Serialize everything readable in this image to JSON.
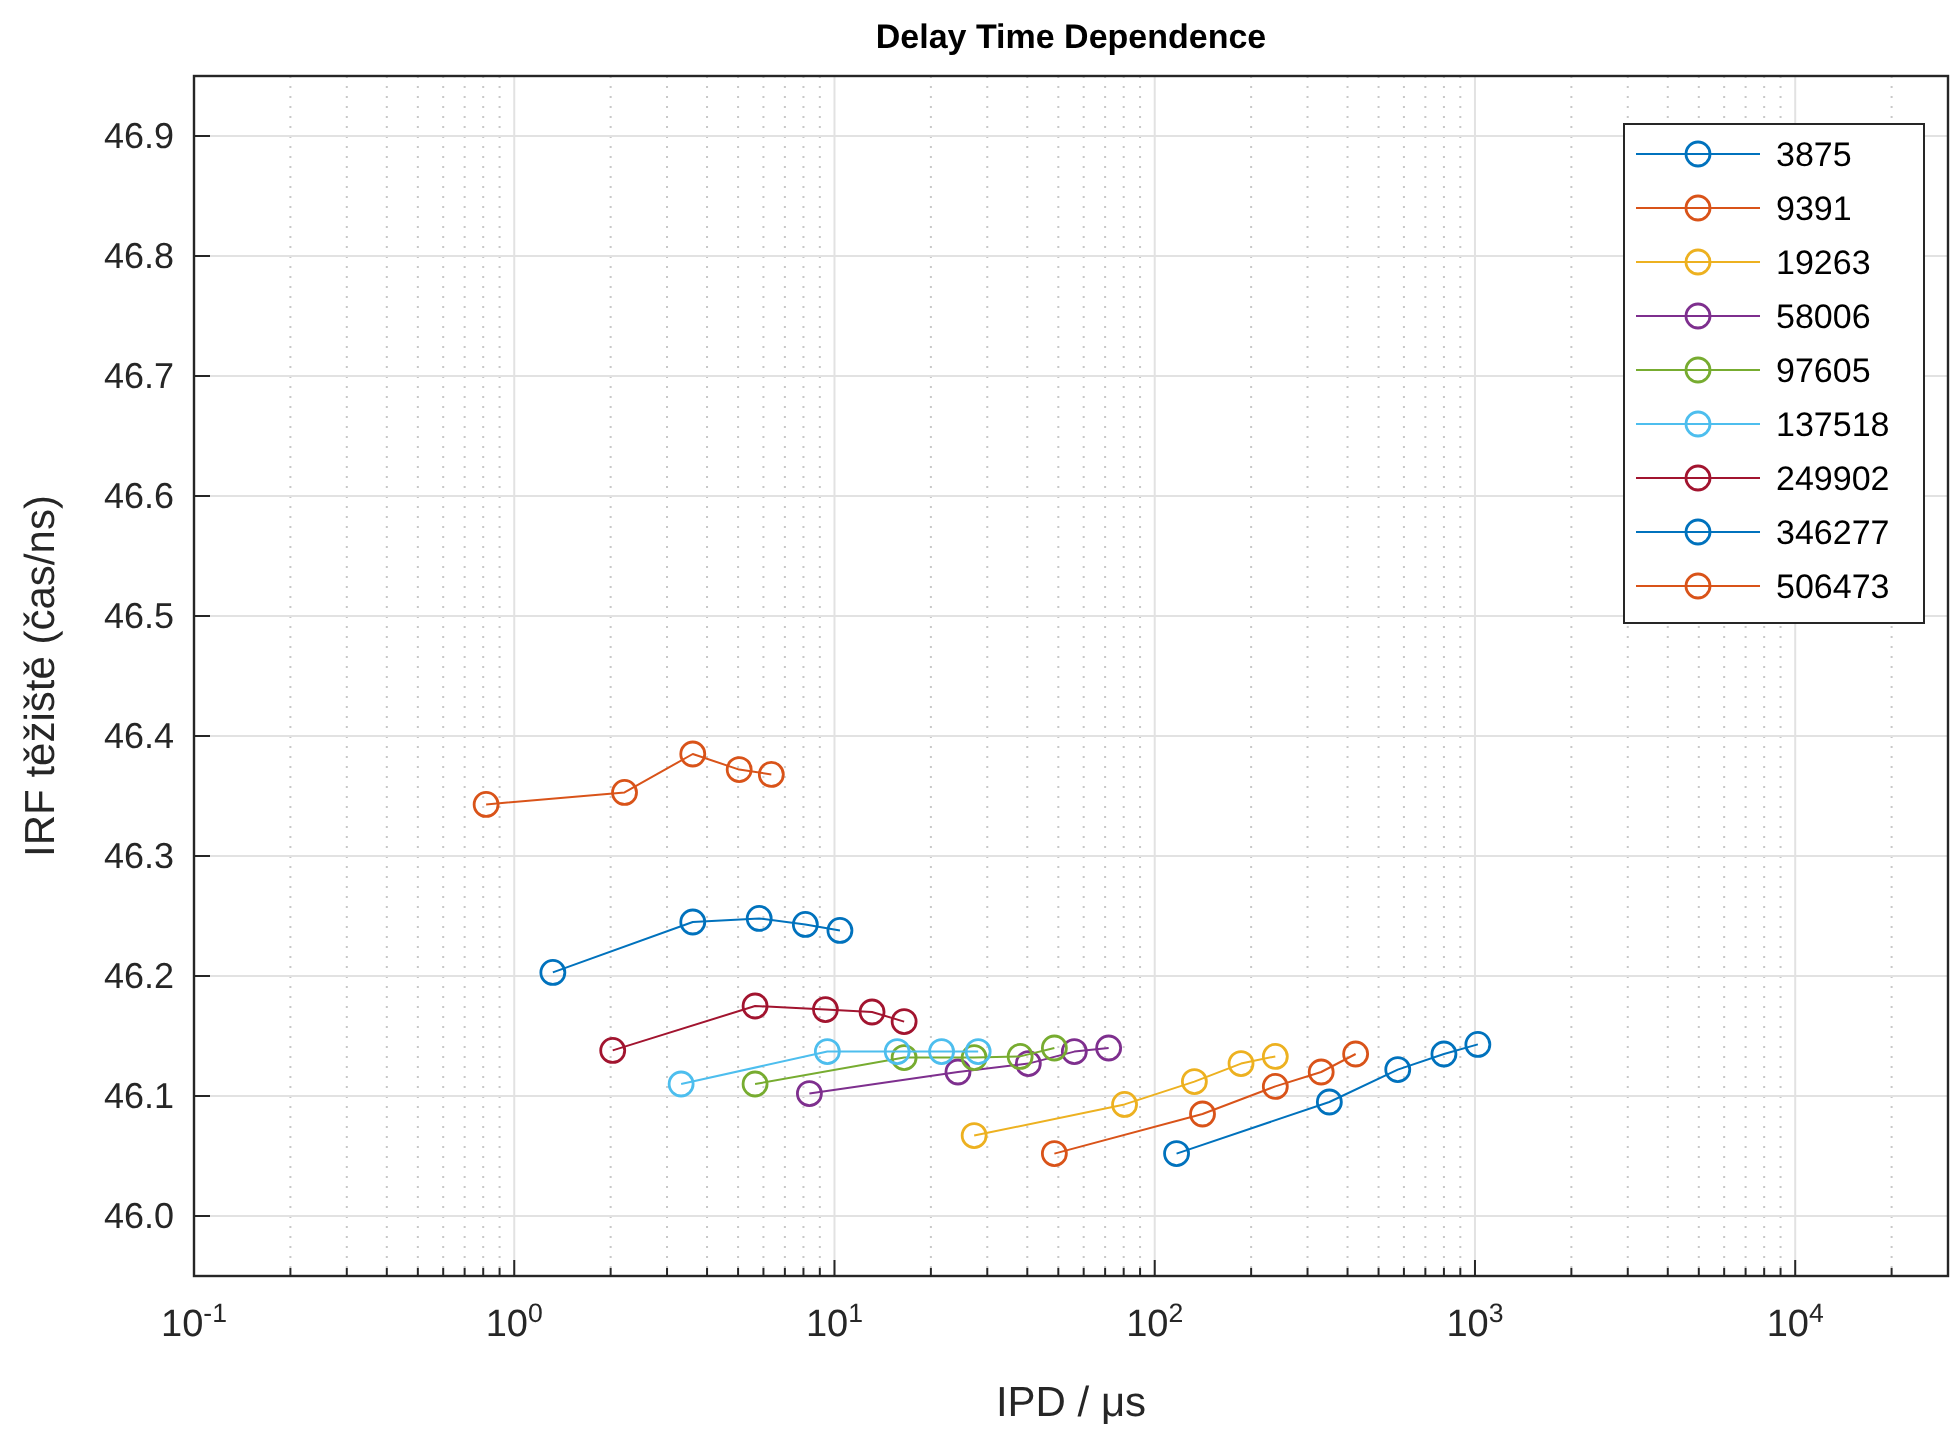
{
  "chart_data": {
    "type": "line",
    "title": "Delay Time Dependence",
    "xlabel": "IPD / μs",
    "ylabel": "IRF těžiště (čas/ns)",
    "log": "x",
    "xlim": [
      0.1,
      30000
    ],
    "ylim": [
      45.95,
      46.95
    ],
    "xticks": [
      {
        "value": 0.1,
        "label": "10$^{-1}$"
      },
      {
        "value": 1,
        "label": "10$^{0}$"
      },
      {
        "value": 10,
        "label": "10$^{1}$"
      },
      {
        "value": 100,
        "label": "10$^{2}$"
      },
      {
        "value": 1000,
        "label": "10$^{3}$"
      },
      {
        "value": 10000,
        "label": "10$^{4}$"
      }
    ],
    "yticks": [
      {
        "value": 46,
        "label": "46.0"
      },
      46.1,
      46.2,
      46.3,
      46.4,
      46.5,
      46.6,
      46.7,
      46.8,
      46.9
    ],
    "grid": true,
    "legend": "top right",
    "marker": "circle",
    "line_style": "solid",
    "series": [
      {
        "name": "3875",
        "color": "#0072bd",
        "x": [
          117,
          351,
          574,
          800,
          1021
        ],
        "values": [
          46.052,
          46.095,
          46.122,
          46.135,
          46.143
        ]
      },
      {
        "name": "9391",
        "color": "#d95319",
        "x": [
          48.6,
          141,
          238,
          331,
          424
        ],
        "values": [
          46.052,
          46.085,
          46.108,
          46.12,
          46.135
        ]
      },
      {
        "name": "19263",
        "color": "#edb120",
        "x": [
          27.3,
          80.5,
          133,
          186,
          238
        ],
        "values": [
          46.067,
          46.093,
          46.112,
          46.127,
          46.133
        ]
      },
      {
        "name": "58006",
        "color": "#7e2f8e",
        "x": [
          8.35,
          24.3,
          40.3,
          56.1,
          71.8
        ],
        "values": [
          46.102,
          46.12,
          46.127,
          46.137,
          46.14
        ]
      },
      {
        "name": "97605",
        "color": "#77ac30",
        "x": [
          5.65,
          16.5,
          27.3,
          38,
          48.6
        ],
        "values": [
          46.11,
          46.132,
          46.132,
          46.133,
          46.14
        ]
      },
      {
        "name": "137518",
        "color": "#4dbeee",
        "x": [
          3.32,
          9.5,
          15.7,
          21.6,
          28.1
        ],
        "values": [
          46.11,
          46.137,
          46.137,
          46.137,
          46.137
        ]
      },
      {
        "name": "249902",
        "color": "#a2142f",
        "x": [
          2.03,
          5.65,
          9.37,
          13.1,
          16.5
        ],
        "values": [
          46.138,
          46.175,
          46.172,
          46.17,
          46.162
        ]
      },
      {
        "name": "346277",
        "color": "#0072bd",
        "x": [
          1.32,
          3.61,
          5.82,
          8.11,
          10.4
        ],
        "values": [
          46.203,
          46.245,
          46.248,
          46.243,
          46.238
        ]
      },
      {
        "name": "506473",
        "color": "#d95319",
        "x": [
          0.817,
          2.21,
          3.61,
          5.04,
          6.35
        ],
        "values": [
          46.343,
          46.353,
          46.385,
          46.372,
          46.368
        ]
      }
    ]
  }
}
